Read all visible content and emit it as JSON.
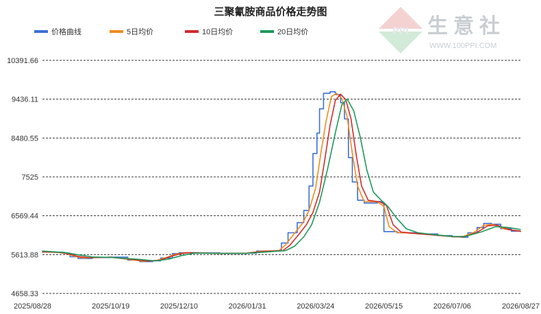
{
  "watermark": {
    "brand_text": "生意社",
    "url": "WWW.100PPI.COM",
    "logo_letters": "PPI"
  },
  "chart_data": {
    "type": "line",
    "title": "三聚氰胺商品价格走势图",
    "y_ticks": [
      "10391.66",
      "9436.11",
      "8480.55",
      "7525",
      "6569.44",
      "5613.88",
      "4658.33"
    ],
    "ylim": [
      4658.33,
      10391.66
    ],
    "x_ticks": [
      "2025/08/28",
      "2025/10/19",
      "2025/12/10",
      "2026/01/31",
      "2026/03/24",
      "2026/05/15",
      "2026/07/06",
      "2026/08/27"
    ],
    "x_range": [
      "2025/08/28",
      "2026/08/27"
    ],
    "grid": "horizontal-dashed",
    "legend_position": "top-left",
    "series": [
      {
        "name": "价格曲线",
        "color": "#3b6fd8",
        "points": [
          [
            "2025/08/28",
            5680
          ],
          [
            "2025/09/06",
            5670
          ],
          [
            "2025/09/13",
            5650
          ],
          [
            "2025/09/18",
            5560
          ],
          [
            "2025/09/24",
            5520
          ],
          [
            "2025/10/05",
            5540
          ],
          [
            "2025/10/19",
            5550
          ],
          [
            "2025/11/01",
            5480
          ],
          [
            "2025/11/10",
            5440
          ],
          [
            "2025/11/20",
            5460
          ],
          [
            "2025/11/26",
            5530
          ],
          [
            "2025/12/05",
            5640
          ],
          [
            "2025/12/10",
            5660
          ],
          [
            "2025/12/25",
            5655
          ],
          [
            "2026/01/10",
            5640
          ],
          [
            "2026/01/31",
            5650
          ],
          [
            "2026/02/07",
            5700
          ],
          [
            "2026/02/22",
            5710
          ],
          [
            "2026/02/26",
            5900
          ],
          [
            "2026/03/03",
            6150
          ],
          [
            "2026/03/10",
            6400
          ],
          [
            "2026/03/15",
            6700
          ],
          [
            "2026/03/19",
            7300
          ],
          [
            "2026/03/22",
            8100
          ],
          [
            "2026/03/25",
            8600
          ],
          [
            "2026/03/27",
            9200
          ],
          [
            "2026/03/30",
            9580
          ],
          [
            "2026/04/04",
            9620
          ],
          [
            "2026/04/08",
            9550
          ],
          [
            "2026/04/12",
            9350
          ],
          [
            "2026/04/15",
            8950
          ],
          [
            "2026/04/18",
            8000
          ],
          [
            "2026/04/21",
            7400
          ],
          [
            "2026/04/25",
            6950
          ],
          [
            "2026/04/30",
            6880
          ],
          [
            "2026/05/10",
            6920
          ],
          [
            "2026/05/13",
            6900
          ],
          [
            "2026/05/15",
            6180
          ],
          [
            "2026/05/25",
            6150
          ],
          [
            "2026/06/10",
            6120
          ],
          [
            "2026/06/25",
            6080
          ],
          [
            "2026/07/06",
            6050
          ],
          [
            "2026/07/13",
            6040
          ],
          [
            "2026/07/18",
            6150
          ],
          [
            "2026/07/25",
            6280
          ],
          [
            "2026/07/30",
            6380
          ],
          [
            "2026/08/05",
            6360
          ],
          [
            "2026/08/12",
            6250
          ],
          [
            "2026/08/20",
            6190
          ],
          [
            "2026/08/27",
            6180
          ]
        ]
      },
      {
        "name": "5日均价",
        "color": "#f28a1c",
        "points": [
          [
            "2025/08/28",
            5680
          ],
          [
            "2025/09/08",
            5670
          ],
          [
            "2025/09/15",
            5640
          ],
          [
            "2025/09/21",
            5580
          ],
          [
            "2025/09/28",
            5530
          ],
          [
            "2025/10/19",
            5550
          ],
          [
            "2025/11/03",
            5490
          ],
          [
            "2025/11/13",
            5450
          ],
          [
            "2025/11/23",
            5470
          ],
          [
            "2025/11/30",
            5540
          ],
          [
            "2025/12/08",
            5630
          ],
          [
            "2025/12/15",
            5660
          ],
          [
            "2026/01/10",
            5642
          ],
          [
            "2026/01/31",
            5650
          ],
          [
            "2026/02/10",
            5695
          ],
          [
            "2026/02/24",
            5710
          ],
          [
            "2026/03/01",
            5850
          ],
          [
            "2026/03/07",
            6100
          ],
          [
            "2026/03/14",
            6380
          ],
          [
            "2026/03/19",
            6700
          ],
          [
            "2026/03/24",
            7250
          ],
          [
            "2026/03/28",
            8100
          ],
          [
            "2026/04/01",
            8900
          ],
          [
            "2026/04/05",
            9500
          ],
          [
            "2026/04/09",
            9580
          ],
          [
            "2026/04/13",
            9450
          ],
          [
            "2026/04/17",
            9000
          ],
          [
            "2026/04/21",
            8100
          ],
          [
            "2026/04/25",
            7300
          ],
          [
            "2026/04/30",
            6920
          ],
          [
            "2026/05/10",
            6910
          ],
          [
            "2026/05/15",
            6800
          ],
          [
            "2026/05/19",
            6300
          ],
          [
            "2026/05/25",
            6160
          ],
          [
            "2026/06/10",
            6125
          ],
          [
            "2026/06/25",
            6085
          ],
          [
            "2026/07/06",
            6055
          ],
          [
            "2026/07/13",
            6045
          ],
          [
            "2026/07/22",
            6150
          ],
          [
            "2026/07/30",
            6330
          ],
          [
            "2026/08/06",
            6360
          ],
          [
            "2026/08/15",
            6240
          ],
          [
            "2026/08/27",
            6185
          ]
        ]
      },
      {
        "name": "10日均价",
        "color": "#d42a2a",
        "points": [
          [
            "2025/08/28",
            5680
          ],
          [
            "2025/09/10",
            5668
          ],
          [
            "2025/09/17",
            5630
          ],
          [
            "2025/09/24",
            5570
          ],
          [
            "2025/10/02",
            5535
          ],
          [
            "2025/10/19",
            5550
          ],
          [
            "2025/11/05",
            5495
          ],
          [
            "2025/11/16",
            5455
          ],
          [
            "2025/11/26",
            5480
          ],
          [
            "2025/12/03",
            5560
          ],
          [
            "2025/12/11",
            5635
          ],
          [
            "2025/12/18",
            5660
          ],
          [
            "2026/01/10",
            5643
          ],
          [
            "2026/01/31",
            5648
          ],
          [
            "2026/02/12",
            5690
          ],
          [
            "2026/02/27",
            5710
          ],
          [
            "2026/03/04",
            5830
          ],
          [
            "2026/03/10",
            6060
          ],
          [
            "2026/03/17",
            6350
          ],
          [
            "2026/03/22",
            6650
          ],
          [
            "2026/03/27",
            7150
          ],
          [
            "2026/03/31",
            7950
          ],
          [
            "2026/04/04",
            8800
          ],
          [
            "2026/04/08",
            9400
          ],
          [
            "2026/04/12",
            9560
          ],
          [
            "2026/04/16",
            9420
          ],
          [
            "2026/04/20",
            8950
          ],
          [
            "2026/04/24",
            8050
          ],
          [
            "2026/04/28",
            7300
          ],
          [
            "2026/05/03",
            6950
          ],
          [
            "2026/05/12",
            6910
          ],
          [
            "2026/05/17",
            6820
          ],
          [
            "2026/05/22",
            6350
          ],
          [
            "2026/05/28",
            6170
          ],
          [
            "2026/06/10",
            6128
          ],
          [
            "2026/06/25",
            6088
          ],
          [
            "2026/07/06",
            6058
          ],
          [
            "2026/07/15",
            6048
          ],
          [
            "2026/07/25",
            6160
          ],
          [
            "2026/08/02",
            6320
          ],
          [
            "2026/08/09",
            6340
          ],
          [
            "2026/08/18",
            6230
          ],
          [
            "2026/08/27",
            6190
          ]
        ]
      },
      {
        "name": "20日均价",
        "color": "#1a9a5a",
        "points": [
          [
            "2025/08/28",
            5700
          ],
          [
            "2025/09/14",
            5665
          ],
          [
            "2025/09/24",
            5610
          ],
          [
            "2025/10/05",
            5555
          ],
          [
            "2025/10/19",
            5545
          ],
          [
            "2025/11/08",
            5500
          ],
          [
            "2025/11/22",
            5460
          ],
          [
            "2025/12/02",
            5500
          ],
          [
            "2025/12/12",
            5590
          ],
          [
            "2025/12/22",
            5650
          ],
          [
            "2026/01/10",
            5645
          ],
          [
            "2026/01/31",
            5645
          ],
          [
            "2026/02/15",
            5680
          ],
          [
            "2026/03/01",
            5710
          ],
          [
            "2026/03/08",
            5820
          ],
          [
            "2026/03/15",
            6050
          ],
          [
            "2026/03/21",
            6350
          ],
          [
            "2026/03/27",
            6900
          ],
          [
            "2026/04/02",
            7700
          ],
          [
            "2026/04/08",
            8600
          ],
          [
            "2026/04/13",
            9300
          ],
          [
            "2026/04/17",
            9440
          ],
          [
            "2026/04/22",
            9150
          ],
          [
            "2026/04/27",
            8500
          ],
          [
            "2026/05/02",
            7700
          ],
          [
            "2026/05/07",
            7150
          ],
          [
            "2026/05/13",
            6950
          ],
          [
            "2026/05/18",
            6800
          ],
          [
            "2026/05/25",
            6500
          ],
          [
            "2026/06/01",
            6250
          ],
          [
            "2026/06/10",
            6150
          ],
          [
            "2026/06/25",
            6095
          ],
          [
            "2026/07/06",
            6062
          ],
          [
            "2026/07/16",
            6060
          ],
          [
            "2026/07/28",
            6170
          ],
          [
            "2026/08/08",
            6300
          ],
          [
            "2026/08/18",
            6280
          ],
          [
            "2026/08/27",
            6230
          ]
        ]
      }
    ]
  }
}
